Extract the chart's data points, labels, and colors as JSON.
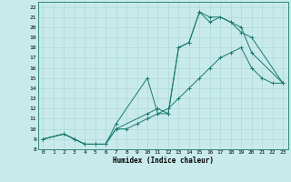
{
  "xlabel": "Humidex (Indice chaleur)",
  "xlim": [
    -0.5,
    23.5
  ],
  "ylim": [
    8,
    22.5
  ],
  "xticks": [
    0,
    1,
    2,
    3,
    4,
    5,
    6,
    7,
    8,
    9,
    10,
    11,
    12,
    13,
    14,
    15,
    16,
    17,
    18,
    19,
    20,
    21,
    22,
    23
  ],
  "yticks": [
    8,
    9,
    10,
    11,
    12,
    13,
    14,
    15,
    16,
    17,
    18,
    19,
    20,
    21,
    22
  ],
  "bg_color": "#c8eaea",
  "line_color": "#1a7a6e",
  "grid_color": "#b0d8d8",
  "line1_x": [
    0,
    2,
    3,
    4,
    5,
    6,
    7,
    10,
    11,
    12,
    13,
    14,
    15,
    16,
    17,
    18,
    19,
    20,
    23
  ],
  "line1_y": [
    9,
    9.5,
    9,
    8.5,
    8.5,
    8.5,
    10.5,
    15,
    11.5,
    11.5,
    18,
    18.5,
    21.5,
    20.5,
    21,
    20.5,
    19.5,
    19,
    14.5
  ],
  "line2_x": [
    0,
    2,
    3,
    4,
    5,
    6,
    7,
    8,
    9,
    10,
    11,
    12,
    13,
    14,
    15,
    16,
    17,
    18,
    19,
    20,
    21,
    22,
    23
  ],
  "line2_y": [
    9,
    9.5,
    9,
    8.5,
    8.5,
    8.5,
    10,
    10,
    10.5,
    11,
    11.5,
    12,
    13,
    14,
    15,
    16,
    17,
    17.5,
    18,
    16,
    15,
    14.5,
    14.5
  ],
  "line3_x": [
    0,
    2,
    3,
    4,
    5,
    6,
    7,
    10,
    11,
    12,
    13,
    14,
    15,
    16,
    17,
    18,
    19,
    20,
    23
  ],
  "line3_y": [
    9,
    9.5,
    9,
    8.5,
    8.5,
    8.5,
    10,
    11.5,
    12,
    11.5,
    18,
    18.5,
    21.5,
    21,
    21,
    20.5,
    20,
    17.5,
    14.5
  ],
  "tick_fontsize": 4.5,
  "xlabel_fontsize": 5.5
}
